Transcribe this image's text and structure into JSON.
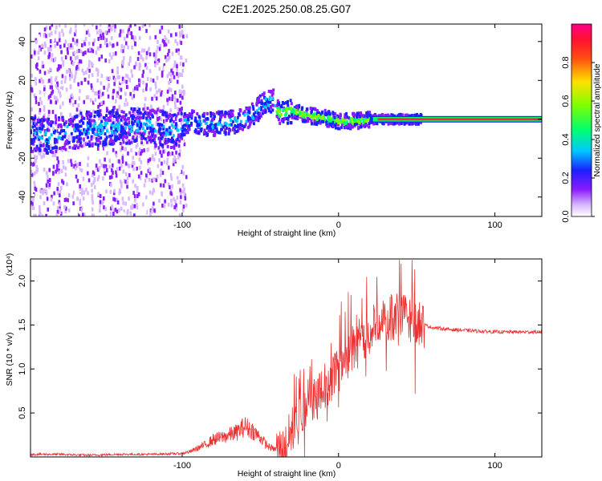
{
  "title": "C2E1.2025.250.08.25.G07",
  "chart_data": [
    {
      "type": "heatmap",
      "title": "C2E1.2025.250.08.25.G07",
      "xlabel": "Height of straight line (km)",
      "ylabel": "Frequency (Hz)",
      "xlim": [
        -197,
        130
      ],
      "ylim": [
        -50,
        49
      ],
      "xticks": [
        -100,
        0,
        100
      ],
      "yticks": [
        -40,
        -20,
        0,
        20,
        40
      ],
      "xtick_labels": [
        "-100",
        "0",
        "100"
      ],
      "ytick_labels": [
        "-40",
        "-20",
        "0",
        "20",
        "40"
      ],
      "colorbar": {
        "label": "Normalized spectral amplitude",
        "range": [
          0,
          1
        ],
        "ticks": [
          0.0,
          0.2,
          0.4,
          0.6,
          0.8
        ],
        "tick_labels": [
          "0.0",
          "0.2",
          "0.4",
          "0.6",
          "0.8"
        ],
        "colormap": [
          "#ffffff",
          "#c9a4ff",
          "#7a00ff",
          "#0020ff",
          "#00e5ff",
          "#00ff30",
          "#c8ff00",
          "#ffb000",
          "#ff2020",
          "#ff0080"
        ]
      },
      "ridge": [
        {
          "x": -195,
          "y": -8
        },
        {
          "x": -185,
          "y": -9
        },
        {
          "x": -175,
          "y": -7
        },
        {
          "x": -160,
          "y": -5
        },
        {
          "x": -140,
          "y": -4
        },
        {
          "x": -120,
          "y": -3
        },
        {
          "x": -105,
          "y": -6
        },
        {
          "x": -95,
          "y": 0
        },
        {
          "x": -85,
          "y": -3
        },
        {
          "x": -75,
          "y": -2
        },
        {
          "x": -65,
          "y": -1
        },
        {
          "x": -55,
          "y": 2
        },
        {
          "x": -48,
          "y": 8
        },
        {
          "x": -42,
          "y": 10
        },
        {
          "x": -38,
          "y": 3
        },
        {
          "x": -30,
          "y": 4
        },
        {
          "x": -20,
          "y": 2
        },
        {
          "x": -10,
          "y": 1
        },
        {
          "x": 0,
          "y": -1
        },
        {
          "x": 10,
          "y": -1
        },
        {
          "x": 20,
          "y": 0
        },
        {
          "x": 30,
          "y": 0
        },
        {
          "x": 40,
          "y": 0
        },
        {
          "x": 60,
          "y": 0
        },
        {
          "x": 90,
          "y": 0
        },
        {
          "x": 130,
          "y": 0
        }
      ]
    },
    {
      "type": "line",
      "xlabel": "Height of straight line (km)",
      "ylabel": "SNR (10 * v/v)",
      "y_multiplier": "(x10⁴)",
      "xlim": [
        -197,
        130
      ],
      "ylim": [
        0,
        2.25
      ],
      "xticks": [
        -100,
        0,
        100
      ],
      "yticks": [
        0.5,
        1.0,
        1.5,
        2.0
      ],
      "xtick_labels": [
        "-100",
        "0",
        "100"
      ],
      "ytick_labels": [
        "0.5",
        "1.0",
        "1.5",
        "2.0"
      ],
      "series": [
        {
          "name": "SNR",
          "color": "#ee3030",
          "x": [
            -197,
            -180,
            -160,
            -140,
            -120,
            -100,
            -95,
            -90,
            -85,
            -80,
            -75,
            -70,
            -65,
            -60,
            -55,
            -50,
            -45,
            -40,
            -35,
            -30,
            -25,
            -20,
            -15,
            -10,
            -5,
            0,
            5,
            10,
            15,
            20,
            25,
            30,
            35,
            40,
            45,
            50,
            55,
            60,
            70,
            80,
            90,
            100,
            110,
            120,
            130
          ],
          "y": [
            0.03,
            0.03,
            0.02,
            0.03,
            0.03,
            0.04,
            0.06,
            0.1,
            0.14,
            0.2,
            0.22,
            0.25,
            0.28,
            0.35,
            0.3,
            0.22,
            0.12,
            0.08,
            0.06,
            0.3,
            0.5,
            0.62,
            0.7,
            0.78,
            0.9,
            1.05,
            1.15,
            1.25,
            1.35,
            1.42,
            1.5,
            1.55,
            1.58,
            1.6,
            1.58,
            1.55,
            1.5,
            1.47,
            1.45,
            1.44,
            1.43,
            1.42,
            1.42,
            1.42,
            1.42
          ]
        }
      ]
    }
  ]
}
